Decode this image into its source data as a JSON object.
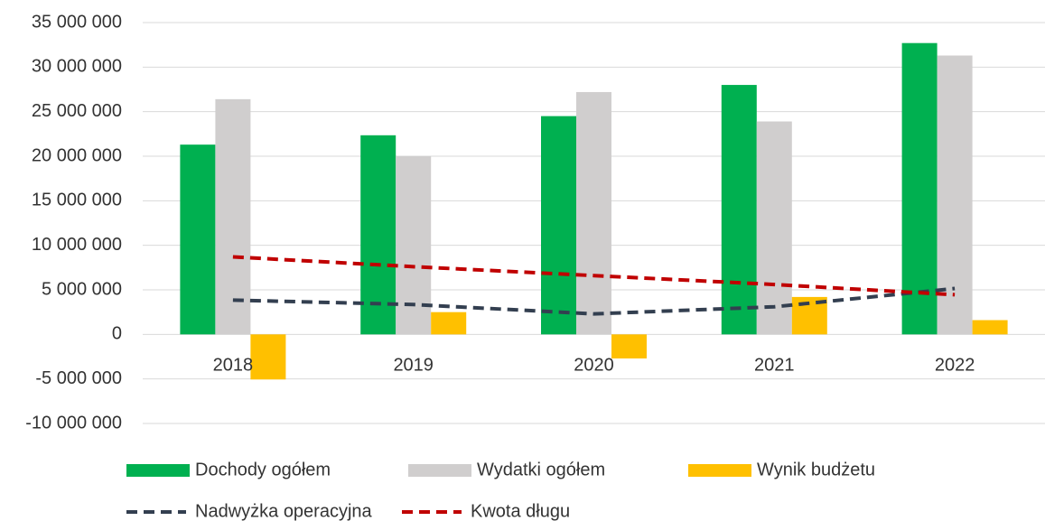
{
  "chart_data": {
    "type": "bar",
    "categories": [
      "2018",
      "2019",
      "2020",
      "2021",
      "2022"
    ],
    "series": [
      {
        "name": "Dochody ogółem",
        "type": "bar",
        "color": "#00b050",
        "values": [
          21300000,
          22350000,
          24500000,
          28000000,
          32700000
        ]
      },
      {
        "name": "Wydatki ogółem",
        "type": "bar",
        "color": "#d0cece",
        "values": [
          26400000,
          20000000,
          27200000,
          23900000,
          31300000
        ]
      },
      {
        "name": "Wynik budżetu",
        "type": "bar",
        "color": "#ffc000",
        "values": [
          -5060000,
          2500000,
          -2700000,
          4200000,
          1600000
        ]
      },
      {
        "name": "Nadwyżka operacyjna",
        "type": "line",
        "color": "#333f50",
        "dashed": true,
        "values": [
          3850000,
          3350000,
          2300000,
          3100000,
          5150000
        ]
      },
      {
        "name": "Kwota długu",
        "type": "line",
        "color": "#c00000",
        "dashed": true,
        "values": [
          8700000,
          7600000,
          6600000,
          5600000,
          4450000
        ]
      }
    ],
    "ylim": [
      -10000000,
      35000000
    ],
    "yticks": [
      {
        "value": -10000000,
        "label": "-10 000 000"
      },
      {
        "value": -5000000,
        "label": "-5 000 000"
      },
      {
        "value": 0,
        "label": "0"
      },
      {
        "value": 5000000,
        "label": "5 000 000"
      },
      {
        "value": 10000000,
        "label": "10 000 000"
      },
      {
        "value": 15000000,
        "label": "15 000 000"
      },
      {
        "value": 20000000,
        "label": "20 000 000"
      },
      {
        "value": 25000000,
        "label": "25 000 000"
      },
      {
        "value": 30000000,
        "label": "30 000 000"
      },
      {
        "value": 35000000,
        "label": "35 000 000"
      }
    ],
    "grid": true,
    "legend": "bottom"
  }
}
